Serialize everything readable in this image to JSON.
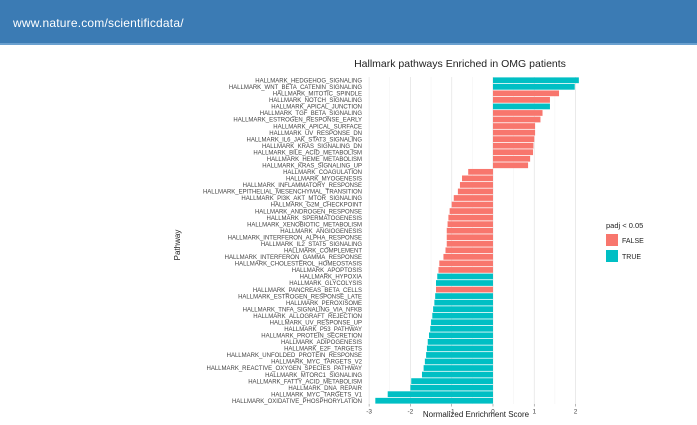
{
  "header": {
    "url": "www.nature.com/scientificdata/"
  },
  "chart_data": {
    "type": "bar",
    "orientation": "horizontal",
    "title": "Hallmark pathways Enriched  in OMG patients",
    "xlabel": "Normalized Enrichment Score",
    "ylabel": "Pathway",
    "xlim": [
      -3.1,
      2.35
    ],
    "xticks": [
      -3,
      -2,
      -1,
      0,
      1,
      2
    ],
    "grid": true,
    "legend": {
      "title": "padj < 0.05",
      "position": "right",
      "entries": [
        {
          "label": "FALSE",
          "color": "#f8766d"
        },
        {
          "label": "TRUE",
          "color": "#00bfc4"
        }
      ]
    },
    "categories": [
      "HALLMARK_HEDGEHOG_SIGNALING",
      "HALLMARK_WNT_BETA_CATENIN_SIGNALING",
      "HALLMARK_MITOTIC_SPINDLE",
      "HALLMARK_NOTCH_SIGNALING",
      "HALLMARK_APICAL_JUNCTION",
      "HALLMARK_TGF_BETA_SIGNALING",
      "HALLMARK_ESTROGEN_RESPONSE_EARLY",
      "HALLMARK_APICAL_SURFACE",
      "HALLMARK_UV_RESPONSE_DN",
      "HALLMARK_IL6_JAK_STAT3_SIGNALING",
      "HALLMARK_KRAS_SIGNALING_DN",
      "HALLMARK_BILE_ACID_METABOLISM",
      "HALLMARK_HEME_METABOLISM",
      "HALLMARK_KRAS_SIGNALING_UP",
      "HALLMARK_COAGULATION",
      "HALLMARK_MYOGENESIS",
      "HALLMARK_INFLAMMATORY_RESPONSE",
      "HALLMARK_EPITHELIAL_MESENCHYMAL_TRANSITION",
      "HALLMARK_PI3K_AKT_MTOR_SIGNALING",
      "HALLMARK_G2M_CHECKPOINT",
      "HALLMARK_ANDROGEN_RESPONSE",
      "HALLMARK_SPERMATOGENESIS",
      "HALLMARK_XENOBIOTIC_METABOLISM",
      "HALLMARK_ANGIOGENESIS",
      "HALLMARK_INTERFERON_ALPHA_RESPONSE",
      "HALLMARK_IL2_STAT5_SIGNALING",
      "HALLMARK_COMPLEMENT",
      "HALLMARK_INTERFERON_GAMMA_RESPONSE",
      "HALLMARK_CHOLESTEROL_HOMEOSTASIS",
      "HALLMARK_APOPTOSIS",
      "HALLMARK_HYPOXIA",
      "HALLMARK_GLYCOLYSIS",
      "HALLMARK_PANCREAS_BETA_CELLS",
      "HALLMARK_ESTROGEN_RESPONSE_LATE",
      "HALLMARK_PEROXISOME",
      "HALLMARK_TNFA_SIGNALING_VIA_NFKB",
      "HALLMARK_ALLOGRAFT_REJECTION",
      "HALLMARK_UV_RESPONSE_UP",
      "HALLMARK_P53_PATHWAY",
      "HALLMARK_PROTEIN_SECRETION",
      "HALLMARK_ADIPOGENESIS",
      "HALLMARK_E2F_TARGETS",
      "HALLMARK_UNFOLDED_PROTEIN_RESPONSE",
      "HALLMARK_MYC_TARGETS_V2",
      "HALLMARK_REACTIVE_OXYGEN_SPECIES_PATHWAY",
      "HALLMARK_MTORC1_SIGNALING",
      "HALLMARK_FATTY_ACID_METABOLISM",
      "HALLMARK_DNA_REPAIR",
      "HALLMARK_MYC_TARGETS_V1",
      "HALLMARK_OXIDATIVE_PHOSPHORYLATION"
    ],
    "values": [
      2.08,
      1.98,
      1.6,
      1.38,
      1.38,
      1.2,
      1.15,
      1.02,
      1.02,
      1.0,
      0.98,
      0.97,
      0.9,
      0.85,
      -0.6,
      -0.75,
      -0.8,
      -0.85,
      -0.95,
      -1.0,
      -1.05,
      -1.08,
      -1.1,
      -1.12,
      -1.12,
      -1.12,
      -1.15,
      -1.2,
      -1.3,
      -1.32,
      -1.35,
      -1.38,
      -1.38,
      -1.4,
      -1.42,
      -1.45,
      -1.47,
      -1.5,
      -1.52,
      -1.55,
      -1.58,
      -1.6,
      -1.62,
      -1.65,
      -1.68,
      -1.72,
      -1.98,
      -2.0,
      -2.55,
      -2.85
    ],
    "padj_lt_0_05": [
      true,
      true,
      false,
      false,
      true,
      false,
      false,
      false,
      false,
      false,
      false,
      false,
      false,
      false,
      false,
      false,
      false,
      false,
      false,
      false,
      false,
      false,
      false,
      false,
      false,
      false,
      false,
      false,
      false,
      false,
      true,
      true,
      false,
      true,
      true,
      true,
      true,
      true,
      true,
      true,
      true,
      true,
      true,
      true,
      true,
      true,
      true,
      true,
      true,
      true
    ]
  }
}
